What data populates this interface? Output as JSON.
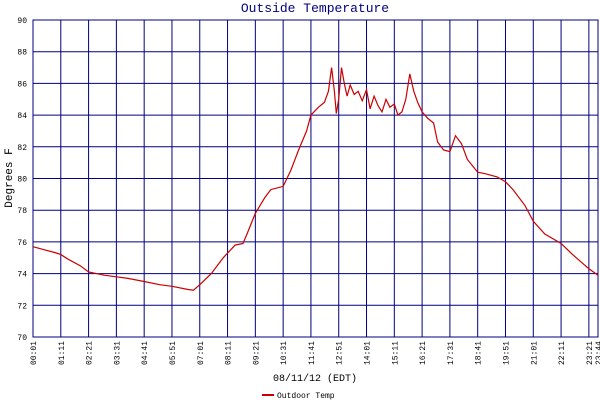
{
  "chart_data": {
    "type": "line",
    "title": "Outside Temperature",
    "y_label": "Degrees F",
    "x_label": "08/11/12 (EDT)",
    "x": [
      "00:01",
      "00:30",
      "01:00",
      "01:11",
      "01:30",
      "02:00",
      "02:21",
      "03:00",
      "03:31",
      "04:00",
      "04:41",
      "05:20",
      "05:51",
      "06:30",
      "06:45",
      "07:01",
      "07:30",
      "08:00",
      "08:30",
      "08:50",
      "09:00",
      "09:21",
      "09:45",
      "10:00",
      "10:31",
      "10:50",
      "11:10",
      "11:30",
      "11:41",
      "12:00",
      "12:15",
      "12:25",
      "12:33",
      "12:40",
      "12:45",
      "12:51",
      "12:58",
      "13:05",
      "13:12",
      "13:20",
      "13:30",
      "13:40",
      "13:50",
      "14:01",
      "14:10",
      "14:20",
      "14:30",
      "14:40",
      "14:50",
      "15:00",
      "15:11",
      "15:20",
      "15:30",
      "15:40",
      "15:50",
      "16:00",
      "16:10",
      "16:21",
      "16:35",
      "16:50",
      "17:00",
      "17:15",
      "17:31",
      "17:45",
      "18:00",
      "18:15",
      "18:41",
      "19:00",
      "19:30",
      "19:51",
      "20:10",
      "20:40",
      "21:01",
      "21:30",
      "22:11",
      "22:40",
      "23:21",
      "23:44"
    ],
    "series": [
      {
        "name": "Outdoor Temp",
        "color": "#cc0000",
        "values": [
          75.7,
          75.5,
          75.3,
          75.2,
          74.9,
          74.5,
          74.1,
          73.9,
          73.8,
          73.7,
          73.5,
          73.3,
          73.2,
          73.0,
          72.95,
          73.3,
          74.0,
          75.0,
          75.8,
          75.9,
          76.5,
          77.8,
          78.8,
          79.3,
          79.5,
          80.5,
          81.8,
          83.0,
          84.0,
          84.5,
          84.8,
          85.5,
          87.0,
          85.5,
          84.1,
          85.0,
          87.0,
          86.0,
          85.2,
          85.9,
          85.3,
          85.5,
          84.9,
          85.6,
          84.4,
          85.2,
          84.6,
          84.2,
          85.0,
          84.5,
          84.7,
          84.0,
          84.2,
          85.0,
          86.6,
          85.5,
          84.8,
          84.2,
          83.8,
          83.5,
          82.3,
          81.8,
          81.7,
          82.7,
          82.2,
          81.2,
          80.4,
          80.3,
          80.1,
          79.8,
          79.3,
          78.3,
          77.3,
          76.5,
          75.9,
          75.2,
          74.3,
          73.9
        ]
      }
    ],
    "xlim": [
      "00:01",
      "23:44"
    ],
    "xticks": [
      "00:01",
      "01:11",
      "02:21",
      "03:31",
      "04:41",
      "05:51",
      "07:01",
      "08:11",
      "09:21",
      "10:31",
      "11:41",
      "12:51",
      "14:01",
      "15:11",
      "16:21",
      "17:31",
      "18:41",
      "19:51",
      "21:01",
      "22:11",
      "23:21",
      "23:44"
    ],
    "ylim": [
      70,
      90
    ],
    "yticks": [
      70,
      72,
      74,
      76,
      78,
      80,
      82,
      84,
      86,
      88,
      90
    ],
    "grid": true,
    "grid_color": "#000080",
    "legend": "bottom"
  }
}
